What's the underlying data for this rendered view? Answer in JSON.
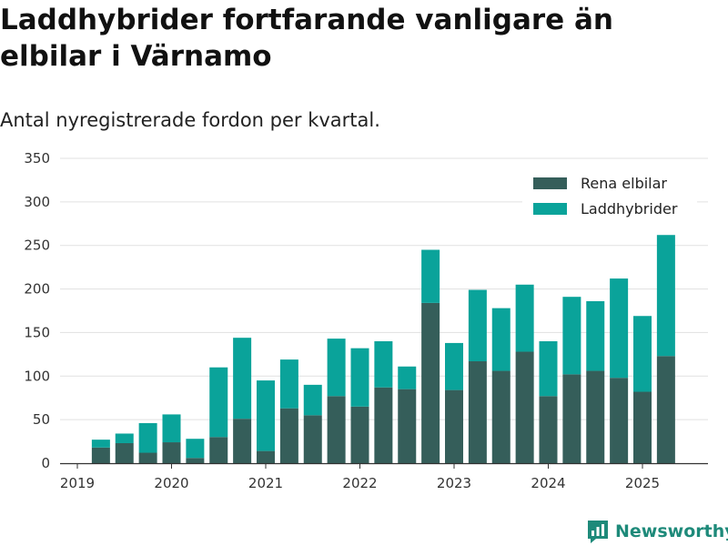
{
  "header": {
    "title": "Laddhybrider fortfarande vanligare än elbilar i Värnamo",
    "subtitle": "Antal nyregistrerade fordon per kvartal."
  },
  "brand": {
    "name": "Newsworthy",
    "icon": "newsworthy-logo-icon",
    "color": "#1e8a7a"
  },
  "chart_data": {
    "type": "bar",
    "stacked": true,
    "title": "Laddhybrider fortfarande vanligare än elbilar i Värnamo",
    "subtitle": "Antal nyregistrerade fordon per kvartal.",
    "xlabel": "",
    "ylabel": "",
    "ylim": [
      0,
      350
    ],
    "yticks": [
      0,
      50,
      100,
      150,
      200,
      250,
      300,
      350
    ],
    "xticks": [
      "2019",
      "2020",
      "2021",
      "2022",
      "2023",
      "2024",
      "2025"
    ],
    "grid": true,
    "legend": "top-right",
    "categories": [
      "2019 Q2",
      "2019 Q3",
      "2019 Q4",
      "2020 Q1",
      "2020 Q2",
      "2020 Q3",
      "2020 Q4",
      "2021 Q1",
      "2021 Q2",
      "2021 Q3",
      "2021 Q4",
      "2022 Q1",
      "2022 Q2",
      "2022 Q3",
      "2022 Q4",
      "2023 Q1",
      "2023 Q2",
      "2023 Q3",
      "2023 Q4",
      "2024 Q1",
      "2024 Q2",
      "2024 Q3",
      "2024 Q4",
      "2025 Q1",
      "2025 Q2"
    ],
    "series": [
      {
        "name": "Rena elbilar",
        "color": "#355e5a",
        "values": [
          18,
          23,
          12,
          24,
          6,
          30,
          51,
          14,
          63,
          55,
          77,
          65,
          87,
          85,
          184,
          84,
          117,
          106,
          128,
          77,
          102,
          106,
          98,
          82,
          123
        ]
      },
      {
        "name": "Laddhybrider",
        "color": "#0aa39a",
        "values": [
          9,
          11,
          34,
          32,
          22,
          80,
          93,
          81,
          56,
          35,
          66,
          67,
          53,
          26,
          61,
          54,
          82,
          72,
          77,
          63,
          89,
          80,
          114,
          87,
          139
        ]
      }
    ]
  }
}
